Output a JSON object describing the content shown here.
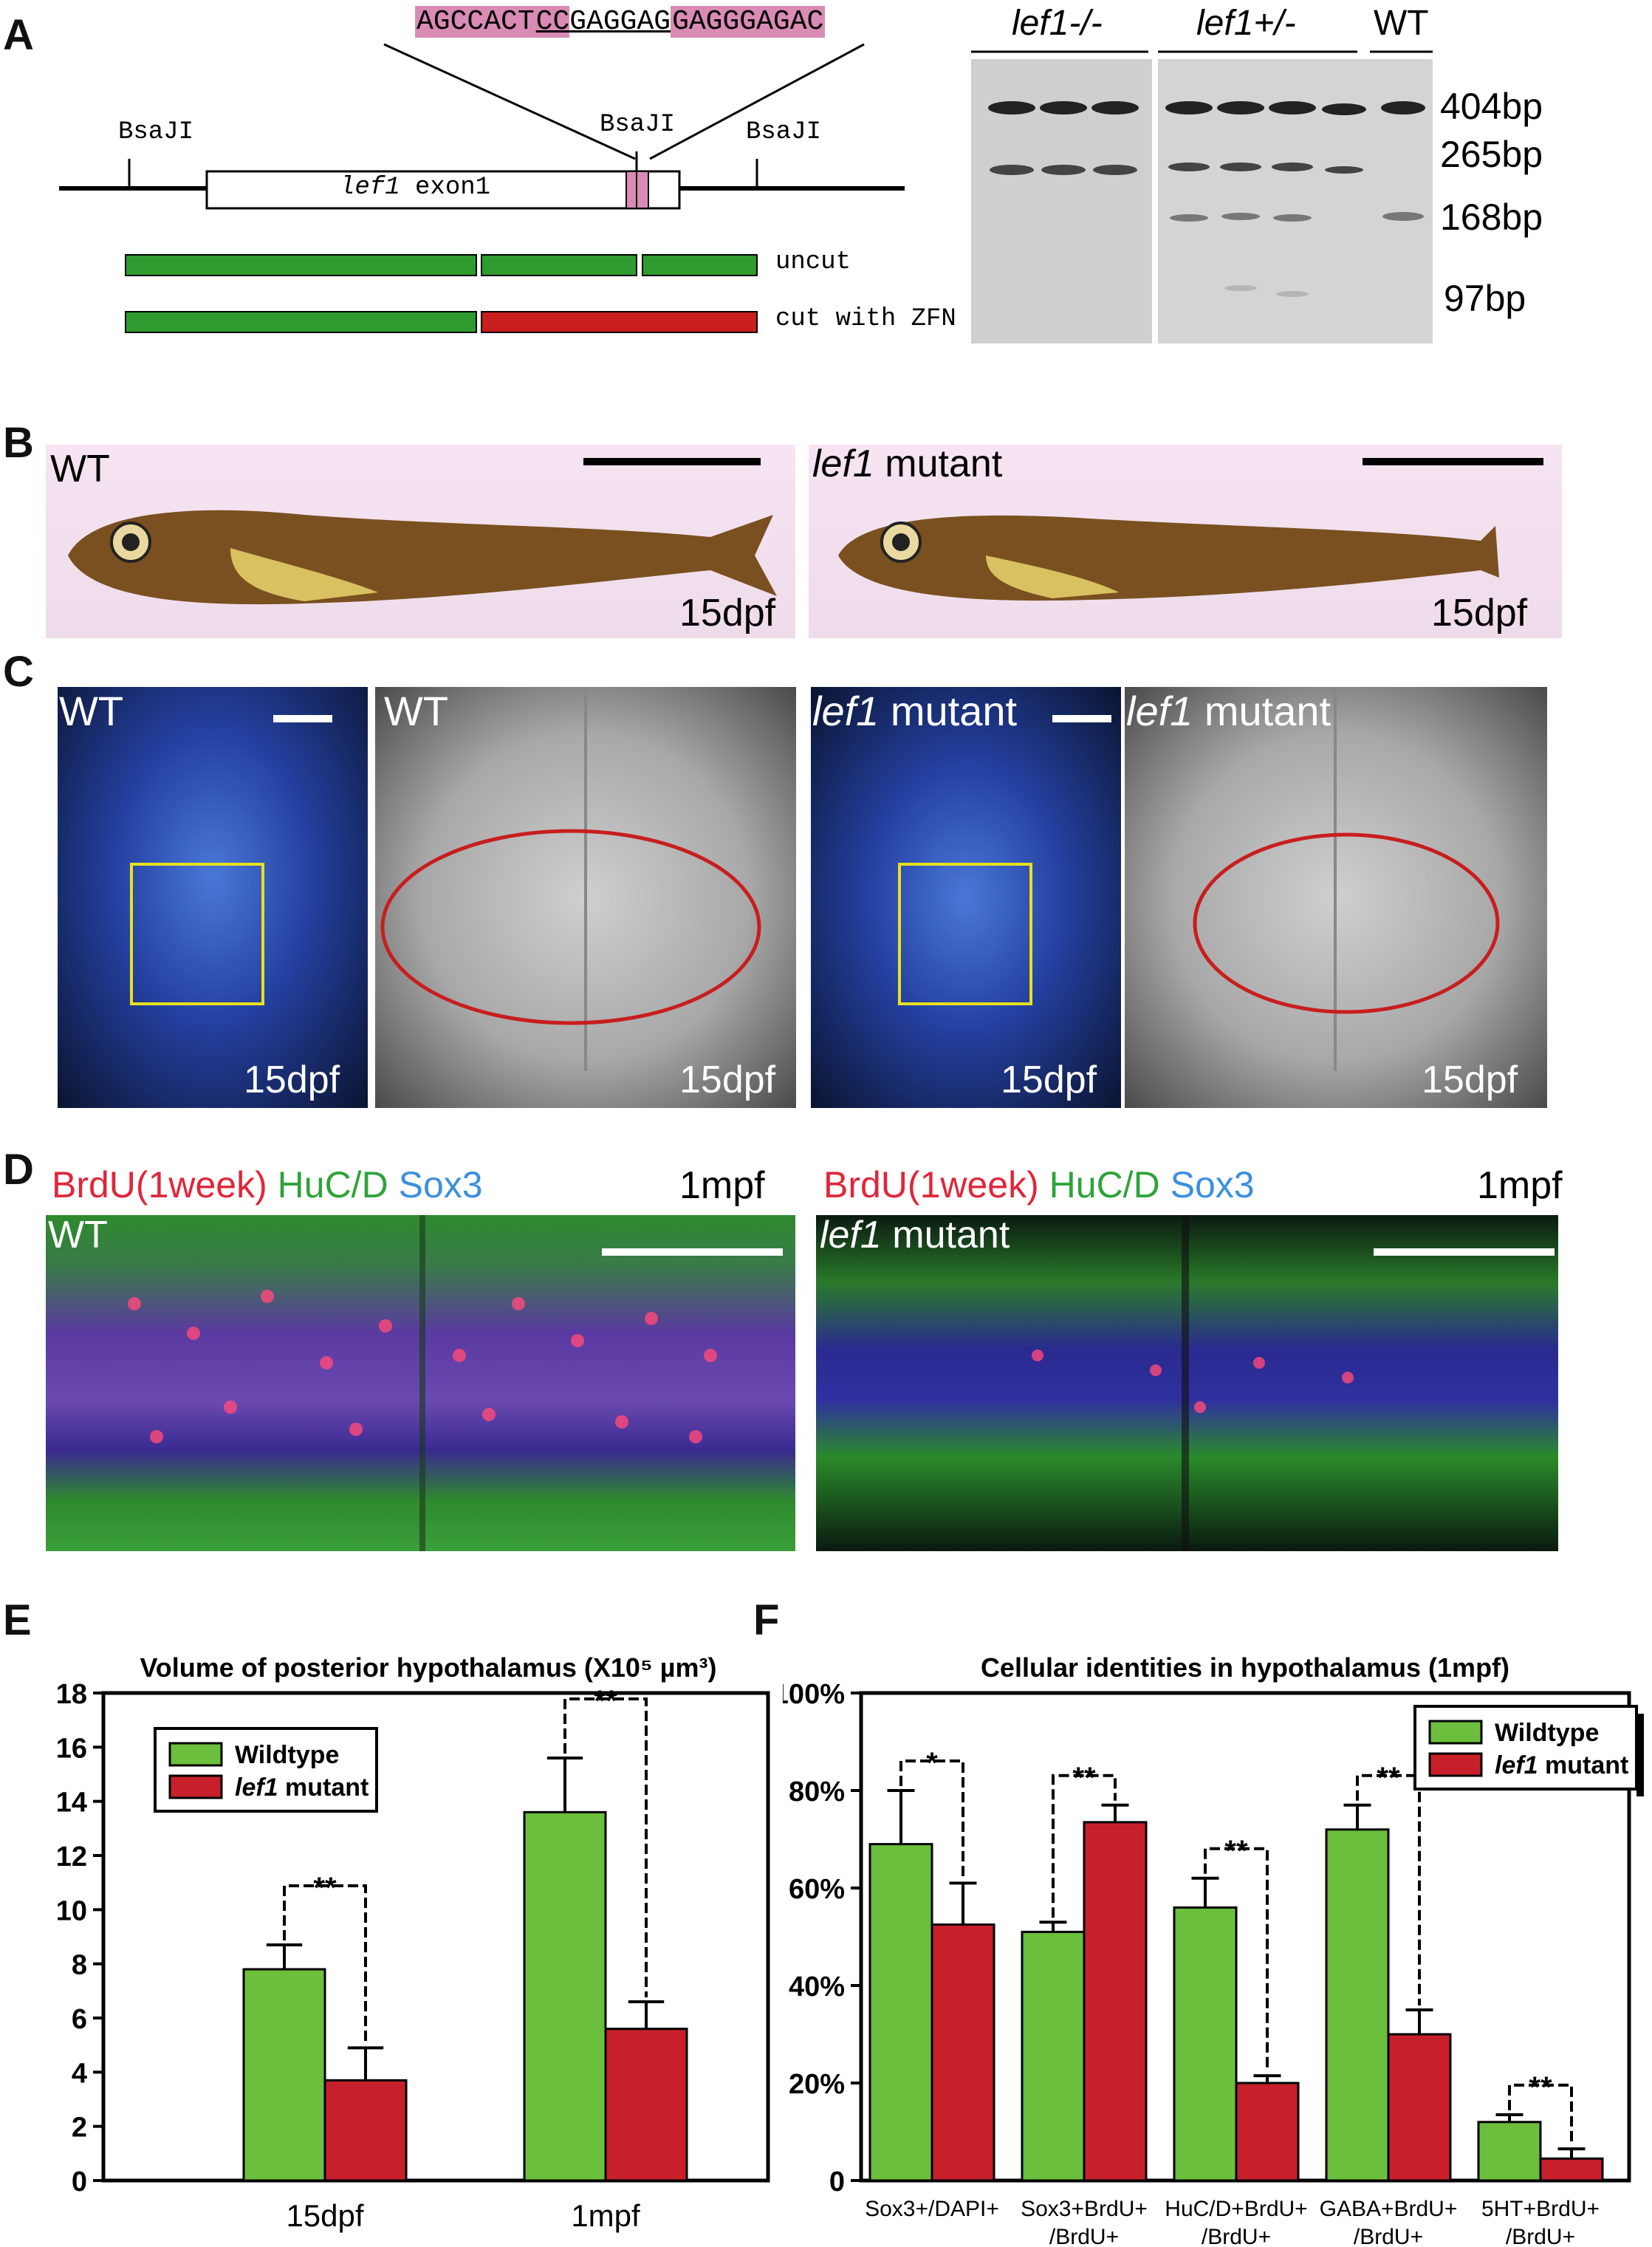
{
  "panels": {
    "A": "A",
    "B": "B",
    "C": "C",
    "D": "D",
    "E": "E",
    "F": "F"
  },
  "panelA": {
    "sequence_left": "AGCCACT",
    "sequence_cc": "CC",
    "sequence_mid": "GAGGAG",
    "sequence_right": "GAGGGAGAC",
    "site_left": "BsaJI",
    "site_middle": "BsaJI",
    "site_right": "BsaJI",
    "exon_label_italic": "lef1",
    "exon_label_rest": " exon1",
    "uncut_label": "uncut",
    "cut_label": "cut with ZFN",
    "gel_header_1": "lef1-/-",
    "gel_header_2": "lef1+/-",
    "gel_header_3": "WT",
    "band_1": "404bp",
    "band_2": "265bp",
    "band_3": "168bp",
    "band_4": "97bp",
    "colors": {
      "pink_highlight": "#d98bb5",
      "green_bar": "#2f9a2f",
      "red_bar": "#c81e1e"
    }
  },
  "panelB": {
    "wt_label": "WT",
    "mutant_italic": "lef1",
    "mutant_rest": " mutant",
    "age_left": "15dpf",
    "age_right": "15dpf"
  },
  "panelC": {
    "labels": [
      "WT",
      "WT",
      "lef1",
      "lef1"
    ],
    "mutant_rest": " mutant",
    "age": "15dpf"
  },
  "panelD": {
    "brdu": "BrdU(1week)",
    "huc": "HuC/D",
    "sox3": "Sox3",
    "age": "1mpf",
    "wt_label": "WT",
    "mutant_italic": "lef1",
    "mutant_rest": " mutant",
    "colors": {
      "brdu": "#e0263a",
      "huc": "#2fa33a",
      "sox3": "#3c8fe0"
    }
  },
  "chart_data": [
    {
      "type": "bar",
      "title": "Volume of posterior hypothalamus (X10⁵ µm³)",
      "categories": [
        "15dpf",
        "1mpf"
      ],
      "series": [
        {
          "name": "Wildtype",
          "values": [
            7.8,
            13.6
          ],
          "errors": [
            0.9,
            2.0
          ],
          "color": "#6cbf3c"
        },
        {
          "name": "lef1 mutant",
          "values": [
            3.7,
            5.6
          ],
          "errors": [
            1.2,
            1.0
          ],
          "color": "#c8202a"
        }
      ],
      "ylim": [
        0,
        18
      ],
      "yticks": [
        "0",
        "2",
        "4",
        "6",
        "8",
        "10",
        "12",
        "14",
        "16",
        "18"
      ],
      "significance": [
        "**",
        "**"
      ],
      "legend": "top-left"
    },
    {
      "type": "bar",
      "title": "Cellular identities in hypothalamus (1mpf)",
      "categories": [
        [
          "Sox3+/DAPI+",
          ""
        ],
        [
          "Sox3+BrdU+",
          "/BrdU+"
        ],
        [
          "HuC/D+BrdU+",
          "/BrdU+"
        ],
        [
          "GABA+BrdU+",
          "/BrdU+"
        ],
        [
          "5HT+BrdU+",
          "/BrdU+"
        ]
      ],
      "series": [
        {
          "name": "Wildtype",
          "values": [
            69,
            51,
            56,
            72,
            12
          ],
          "errors": [
            11,
            2,
            6,
            5,
            1.5
          ],
          "color": "#6cbf3c"
        },
        {
          "name": "lef1 mutant",
          "values": [
            52.5,
            73.5,
            20,
            30,
            4.5
          ],
          "errors": [
            8.5,
            3.5,
            1.5,
            5,
            2
          ],
          "color": "#c8202a"
        }
      ],
      "ylim": [
        0,
        100
      ],
      "yticks": [
        "0",
        "20%",
        "40%",
        "60%",
        "80%",
        "100%"
      ],
      "significance": [
        "*",
        "**",
        "**",
        "**",
        "**"
      ],
      "legend": "top-right"
    }
  ]
}
